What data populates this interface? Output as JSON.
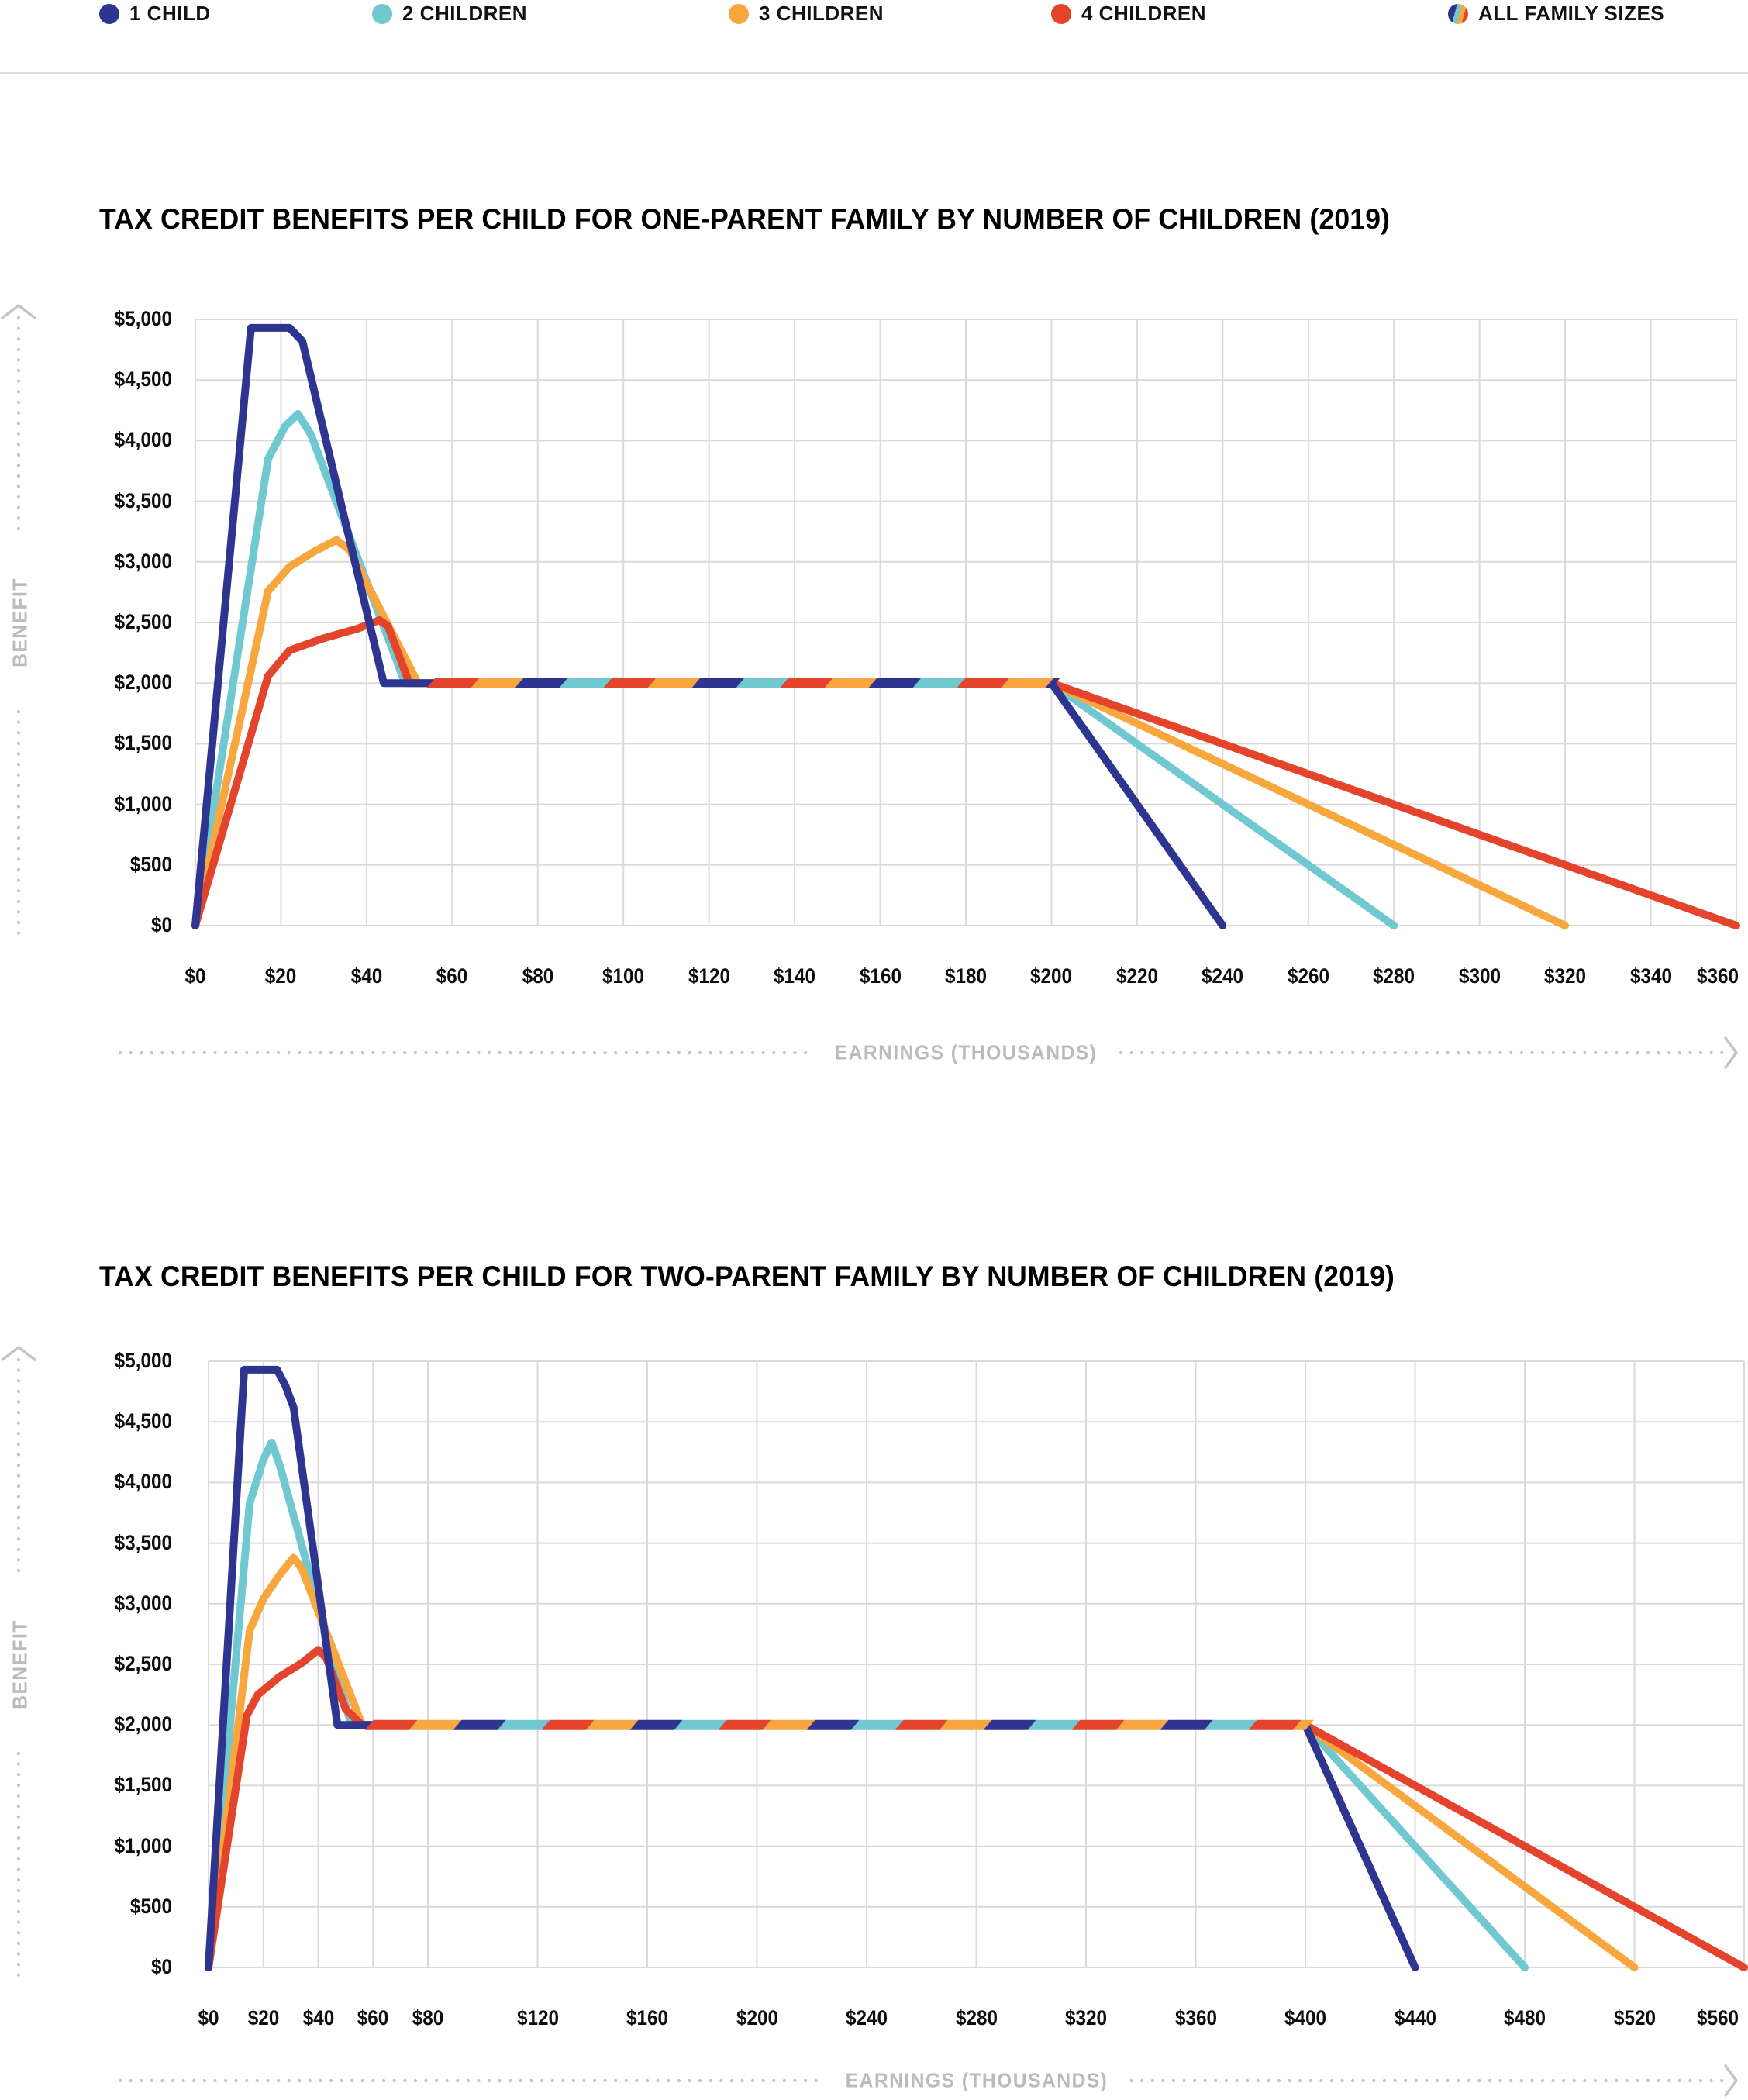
{
  "legend": {
    "items": [
      {
        "label": "1 CHILD",
        "swatch": "solid",
        "color": "#2E3591"
      },
      {
        "label": "2 CHILDREN",
        "swatch": "solid",
        "color": "#70C9D1"
      },
      {
        "label": "3 CHILDREN",
        "swatch": "solid",
        "color": "#F8A73E"
      },
      {
        "label": "4 CHILDREN",
        "swatch": "solid",
        "color": "#E3442B"
      },
      {
        "label": "ALL FAMILY SIZES",
        "swatch": "striped",
        "colors": [
          "#2E3591",
          "#70C9D1",
          "#F8A73E",
          "#E3442B"
        ]
      }
    ]
  },
  "colors": {
    "navy": "#2E3591",
    "teal": "#70C9D1",
    "orange": "#F8A73E",
    "red": "#E3442B",
    "grid": "#dadada",
    "axis_gray": "#c3c5c6",
    "tick_text": "#0d0d0d"
  },
  "chart_data": [
    {
      "type": "line",
      "title": "TAX CREDIT BENEFITS PER CHILD FOR ONE-PARENT FAMILY BY NUMBER OF CHILDREN (2019)",
      "xlabel": "EARNINGS (THOUSANDS)",
      "ylabel": "BENEFIT",
      "x_unit": "thousands of dollars",
      "xlim": [
        0,
        360
      ],
      "ylim": [
        0,
        5000
      ],
      "grid": true,
      "x_tick_values": [
        0,
        20,
        40,
        60,
        80,
        100,
        120,
        140,
        160,
        180,
        200,
        220,
        240,
        260,
        280,
        300,
        320,
        340,
        360
      ],
      "x_tick_labels": [
        "$0",
        "$20",
        "$40",
        "$60",
        "$80",
        "$100",
        "$120",
        "$140",
        "$160",
        "$180",
        "$200",
        "$220",
        "$240",
        "$260",
        "$280",
        "$300",
        "$320",
        "$340",
        "$360"
      ],
      "y_tick_values": [
        0,
        500,
        1000,
        1500,
        2000,
        2500,
        3000,
        3500,
        4000,
        4500,
        5000
      ],
      "y_tick_labels": [
        "$0",
        "$500",
        "$1,000",
        "$1,500",
        "$2,000",
        "$2,500",
        "$3,000",
        "$3,500",
        "$4,000",
        "$4,500",
        "$5,000"
      ],
      "series": [
        {
          "name": "1 CHILD",
          "color": "#2E3591",
          "points": [
            [
              0,
              0
            ],
            [
              13,
              4930
            ],
            [
              22,
              4930
            ],
            [
              25,
              4820
            ],
            [
              44,
              2000
            ],
            [
              200,
              2000
            ],
            [
              240,
              0
            ]
          ]
        },
        {
          "name": "2 CHILDREN",
          "color": "#70C9D1",
          "points": [
            [
              0,
              0
            ],
            [
              17,
              3850
            ],
            [
              21,
              4120
            ],
            [
              24,
              4220
            ],
            [
              27,
              4050
            ],
            [
              49,
              2000
            ],
            [
              200,
              2000
            ],
            [
              280,
              0
            ]
          ]
        },
        {
          "name": "3 CHILDREN",
          "color": "#F8A73E",
          "points": [
            [
              0,
              0
            ],
            [
              17,
              2760
            ],
            [
              22,
              2960
            ],
            [
              28,
              3090
            ],
            [
              33,
              3180
            ],
            [
              36,
              3100
            ],
            [
              52,
              2000
            ],
            [
              200,
              2000
            ],
            [
              320,
              0
            ]
          ]
        },
        {
          "name": "4 CHILDREN",
          "color": "#E3442B",
          "points": [
            [
              0,
              0
            ],
            [
              17,
              2060
            ],
            [
              22,
              2270
            ],
            [
              30,
              2370
            ],
            [
              38,
              2450
            ],
            [
              43,
              2520
            ],
            [
              45,
              2470
            ],
            [
              50,
              2000
            ],
            [
              200,
              2000
            ],
            [
              360,
              0
            ]
          ]
        },
        {
          "name": "ALL FAMILY SIZES",
          "style": "multicolor-dash",
          "colors": [
            "#E3442B",
            "#F8A73E",
            "#2E3591",
            "#70C9D1"
          ],
          "points": [
            [
              54,
              2000
            ],
            [
              200,
              2000
            ]
          ]
        }
      ]
    },
    {
      "type": "line",
      "title": "TAX CREDIT BENEFITS PER CHILD FOR TWO-PARENT FAMILY BY NUMBER OF CHILDREN (2019)",
      "xlabel": "EARNINGS (THOUSANDS)",
      "ylabel": "BENEFIT",
      "x_unit": "thousands of dollars",
      "xlim": [
        0,
        560
      ],
      "ylim": [
        0,
        5000
      ],
      "grid": true,
      "x_tick_values": [
        0,
        20,
        40,
        60,
        80,
        120,
        160,
        200,
        240,
        280,
        320,
        360,
        400,
        440,
        480,
        520,
        560
      ],
      "x_tick_labels": [
        "$0",
        "$20",
        "$40",
        "$60",
        "$80",
        "$120",
        "$160",
        "$200",
        "$240",
        "$280",
        "$320",
        "$360",
        "$400",
        "$440",
        "$480",
        "$520",
        "$560"
      ],
      "y_tick_values": [
        0,
        500,
        1000,
        1500,
        2000,
        2500,
        3000,
        3500,
        4000,
        4500,
        5000
      ],
      "y_tick_labels": [
        "$0",
        "$500",
        "$1,000",
        "$1,500",
        "$2,000",
        "$2,500",
        "$3,000",
        "$3,500",
        "$4,000",
        "$4,500",
        "$5,000"
      ],
      "series": [
        {
          "name": "1 CHILD",
          "color": "#2E3591",
          "points": [
            [
              0,
              0
            ],
            [
              13,
              4930
            ],
            [
              25,
              4930
            ],
            [
              28,
              4800
            ],
            [
              31,
              4620
            ],
            [
              47,
              2000
            ],
            [
              400,
              2000
            ],
            [
              440,
              0
            ]
          ]
        },
        {
          "name": "2 CHILDREN",
          "color": "#70C9D1",
          "points": [
            [
              0,
              0
            ],
            [
              15,
              3830
            ],
            [
              20,
              4190
            ],
            [
              23,
              4330
            ],
            [
              26,
              4140
            ],
            [
              52,
              2000
            ],
            [
              400,
              2000
            ],
            [
              480,
              0
            ]
          ]
        },
        {
          "name": "3 CHILDREN",
          "color": "#F8A73E",
          "points": [
            [
              0,
              0
            ],
            [
              15,
              2780
            ],
            [
              20,
              3040
            ],
            [
              26,
              3240
            ],
            [
              31,
              3380
            ],
            [
              34,
              3290
            ],
            [
              56,
              2000
            ],
            [
              400,
              2000
            ],
            [
              520,
              0
            ]
          ]
        },
        {
          "name": "4 CHILDREN",
          "color": "#E3442B",
          "points": [
            [
              0,
              0
            ],
            [
              14,
              2080
            ],
            [
              18,
              2250
            ],
            [
              26,
              2400
            ],
            [
              34,
              2510
            ],
            [
              40,
              2620
            ],
            [
              43,
              2550
            ],
            [
              50,
              2130
            ],
            [
              56,
              2000
            ],
            [
              400,
              2000
            ],
            [
              560,
              0
            ]
          ]
        },
        {
          "name": "ALL FAMILY SIZES",
          "style": "multicolor-dash",
          "colors": [
            "#E3442B",
            "#F8A73E",
            "#2E3591",
            "#70C9D1"
          ],
          "points": [
            [
              57,
              2000
            ],
            [
              400,
              2000
            ]
          ]
        }
      ]
    }
  ]
}
